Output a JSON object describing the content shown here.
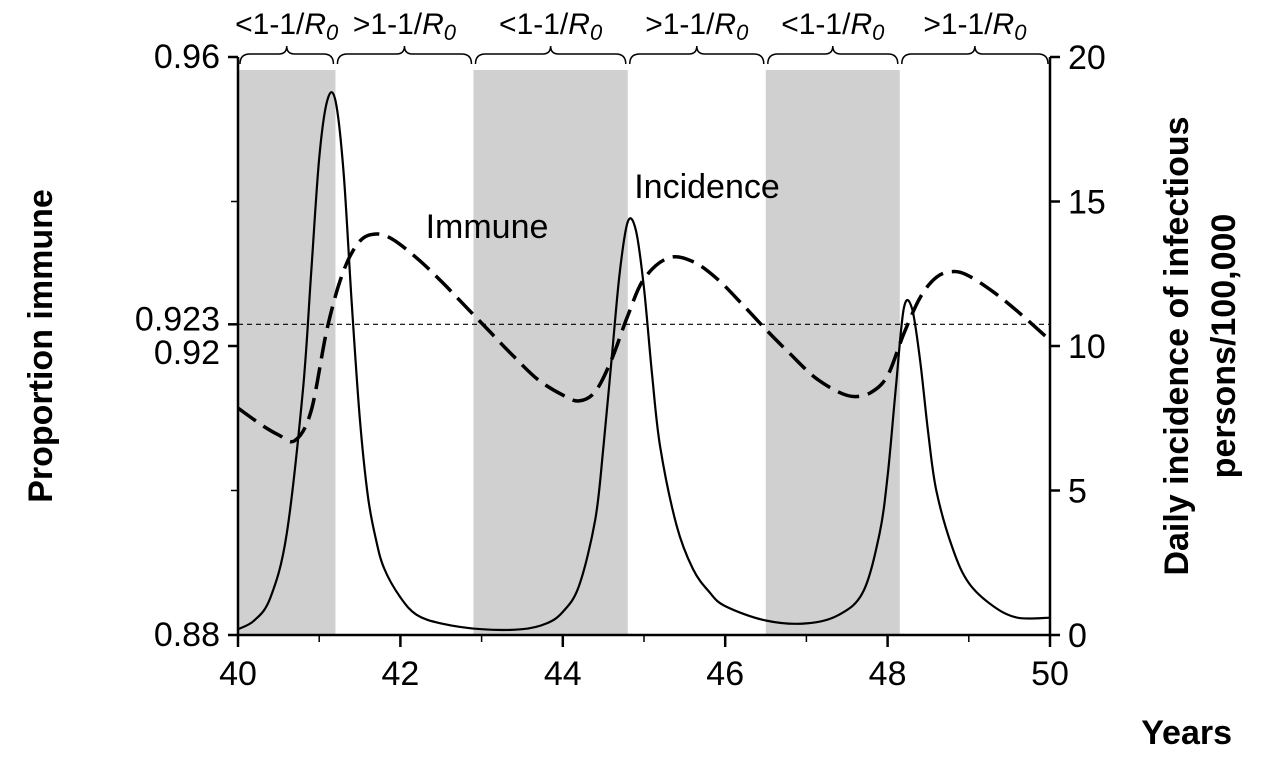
{
  "chart_data": {
    "type": "line",
    "xlabel": "Years",
    "ylabel_left": "Proportion immune",
    "ylabel_right_line1": "Daily incidence of infectious",
    "ylabel_right_line2": "persons/100,000",
    "xlim": [
      40,
      50
    ],
    "ylim_left": [
      0.88,
      0.96
    ],
    "ylim_right": [
      0,
      20
    ],
    "x_ticks": [
      "40",
      "42",
      "44",
      "46",
      "48",
      "50"
    ],
    "x_tick_values": [
      40,
      42,
      44,
      46,
      48,
      50
    ],
    "y_left_ticks": [
      "0.96",
      "0.923",
      "0.92",
      "0.88"
    ],
    "y_left_tick_values": [
      0.96,
      0.923,
      0.92,
      0.88
    ],
    "y_left_minor_ticks": [
      0.9,
      0.94
    ],
    "y_right_ticks": [
      "20",
      "15",
      "10",
      "5",
      "0"
    ],
    "y_right_tick_values": [
      20,
      15,
      10,
      5,
      0
    ],
    "threshold": 0.923,
    "annotations": {
      "immune": "Immune",
      "incidence": "Incidence"
    },
    "period_labels": [
      "<1-1/",
      ">1-1/",
      "<1-1/",
      ">1-1/",
      "<1-1/",
      ">1-1/"
    ],
    "period_symbol": "R",
    "period_subscript": "0",
    "periods": [
      {
        "start": 40.0,
        "end": 41.2,
        "shaded": true
      },
      {
        "start": 41.2,
        "end": 42.9,
        "shaded": false
      },
      {
        "start": 42.9,
        "end": 44.8,
        "shaded": true
      },
      {
        "start": 44.8,
        "end": 46.5,
        "shaded": false
      },
      {
        "start": 46.5,
        "end": 48.15,
        "shaded": true
      },
      {
        "start": 48.15,
        "end": 50.0,
        "shaded": false
      }
    ],
    "shade_color": "#d0d0d0",
    "series": [
      {
        "name": "Immune",
        "axis": "left",
        "style": "dashed",
        "x": [
          40.0,
          40.3,
          40.5,
          40.7,
          40.9,
          41.1,
          41.3,
          41.5,
          41.7,
          41.9,
          42.2,
          42.5,
          42.8,
          43.1,
          43.4,
          43.7,
          44.0,
          44.2,
          44.4,
          44.6,
          44.8,
          45.0,
          45.3,
          45.6,
          45.9,
          46.2,
          46.5,
          46.8,
          47.1,
          47.4,
          47.6,
          47.8,
          48.0,
          48.2,
          48.4,
          48.6,
          48.8,
          49.0,
          49.3,
          49.6,
          50.0
        ],
        "y": [
          0.9114,
          0.909,
          0.9077,
          0.9069,
          0.911,
          0.9225,
          0.9304,
          0.9345,
          0.9355,
          0.9348,
          0.9322,
          0.929,
          0.9255,
          0.922,
          0.9185,
          0.9153,
          0.9132,
          0.9124,
          0.9137,
          0.9181,
          0.9242,
          0.9293,
          0.9322,
          0.9317,
          0.9293,
          0.9259,
          0.9223,
          0.9189,
          0.9157,
          0.9136,
          0.913,
          0.9136,
          0.9159,
          0.9217,
          0.9267,
          0.9295,
          0.9303,
          0.9297,
          0.9275,
          0.9248,
          0.9208
        ]
      },
      {
        "name": "Incidence",
        "axis": "right",
        "style": "solid",
        "x": [
          40.0,
          40.2,
          40.4,
          40.6,
          40.8,
          40.9,
          41.0,
          41.1,
          41.2,
          41.3,
          41.4,
          41.5,
          41.6,
          41.7,
          41.8,
          42.0,
          42.2,
          42.5,
          43.0,
          43.5,
          43.8,
          44.0,
          44.2,
          44.4,
          44.5,
          44.6,
          44.7,
          44.8,
          44.9,
          45.0,
          45.1,
          45.2,
          45.4,
          45.6,
          45.8,
          46.0,
          46.5,
          47.0,
          47.4,
          47.7,
          47.9,
          48.0,
          48.1,
          48.2,
          48.3,
          48.4,
          48.5,
          48.6,
          48.8,
          49.0,
          49.3,
          49.6,
          50.0
        ],
        "y": [
          0.2,
          0.5,
          1.3,
          3.5,
          8.5,
          12.5,
          16.5,
          18.5,
          18.5,
          16.0,
          11.5,
          7.5,
          4.8,
          3.3,
          2.3,
          1.3,
          0.7,
          0.4,
          0.2,
          0.2,
          0.4,
          0.8,
          1.7,
          4.0,
          6.5,
          9.5,
          12.5,
          14.3,
          14.0,
          12.0,
          9.0,
          6.5,
          3.8,
          2.3,
          1.5,
          1.0,
          0.5,
          0.4,
          0.7,
          1.5,
          3.5,
          5.5,
          8.5,
          11.3,
          11.3,
          9.5,
          7.0,
          5.0,
          3.0,
          1.8,
          1.0,
          0.6,
          0.6
        ]
      }
    ]
  }
}
